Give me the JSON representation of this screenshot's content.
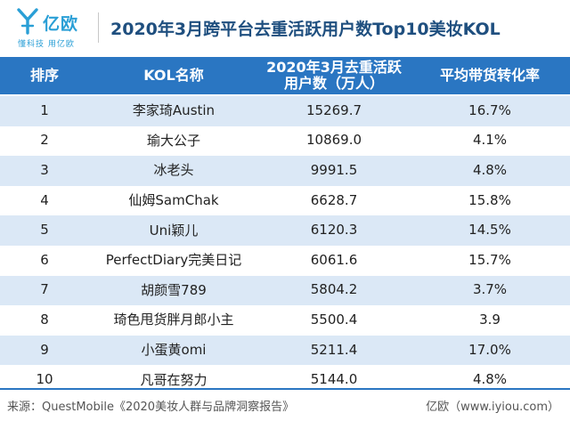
{
  "brand": {
    "logo_text": "亿欧",
    "tagline": "懂科技 用亿欧",
    "logo_color": "#2a9fd6"
  },
  "title": "2020年3月跨平台去重活跃用户数Top10美妆KOL",
  "chart_data": {
    "type": "table",
    "columns": [
      "排序",
      "KOL名称",
      "2020年3月去重活跃\n用户数（万人）",
      "平均带货转化率"
    ],
    "rows": [
      [
        "1",
        "李家琦Austin",
        "15269.7",
        "16.7%"
      ],
      [
        "2",
        "瑜大公子",
        "10869.0",
        "4.1%"
      ],
      [
        "3",
        "冰老头",
        "9991.5",
        "4.8%"
      ],
      [
        "4",
        "仙姆SamChak",
        "6628.7",
        "15.8%"
      ],
      [
        "5",
        "Uni颖儿",
        "6120.3",
        "14.5%"
      ],
      [
        "6",
        "PerfectDiary完美日记",
        "6061.6",
        "15.7%"
      ],
      [
        "7",
        "胡颜雪789",
        "5804.2",
        "3.7%"
      ],
      [
        "8",
        "琦色甩货胖月郎小主",
        "5500.4",
        "3.9"
      ],
      [
        "9",
        "小蛋黄omi",
        "5211.4",
        "17.0%"
      ],
      [
        "10",
        "凡哥在努力",
        "5144.0",
        "4.8%"
      ]
    ],
    "header_color": "#2a76c2",
    "stripe_color": "#dbe8f6"
  },
  "footer": {
    "source": "来源：QuestMobile《2020美妆人群与品牌洞察报告》",
    "credit": "亿欧（www.iyiou.com）"
  }
}
